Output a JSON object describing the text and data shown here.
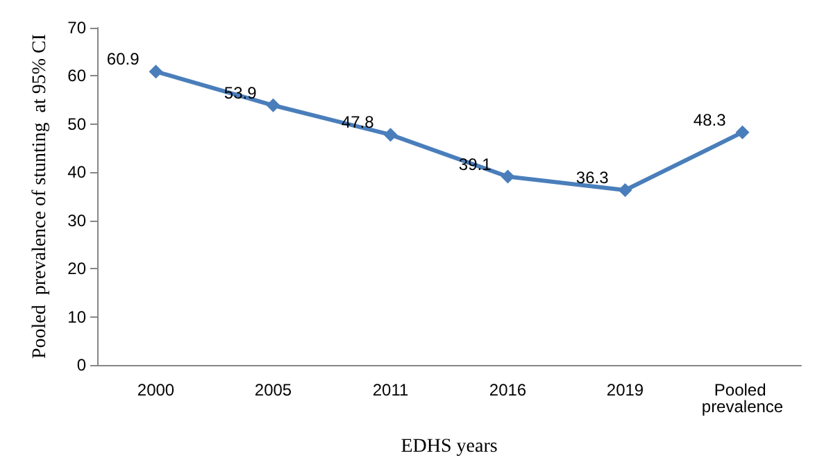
{
  "chart_data": {
    "type": "line",
    "xlabel": "EDHS years",
    "ylabel": "Pooled  prevalence of stunting  at 95% CI",
    "categories": [
      "2000",
      "2005",
      "2011",
      "2016",
      "2019",
      "Pooled prevalence"
    ],
    "series": [
      {
        "color": "#4a7ebb",
        "values": [
          60.9,
          53.9,
          47.8,
          39.1,
          36.3,
          48.3
        ]
      }
    ],
    "ylim": [
      0,
      70
    ],
    "yticks": [
      0,
      10,
      20,
      30,
      40,
      50,
      60,
      70
    ],
    "grid": false,
    "marker": "diamond",
    "line_style": "solid",
    "data_labels": true
  }
}
